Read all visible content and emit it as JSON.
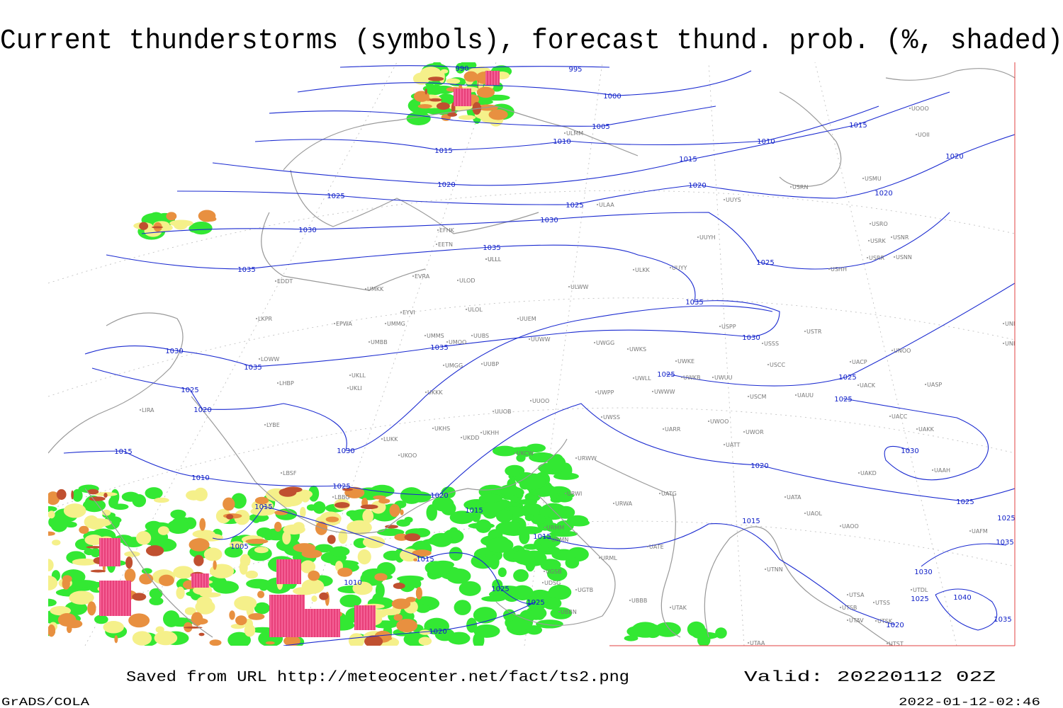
{
  "title": "Current thunderstorms (symbols), forecast thund. prob. (%, shaded)",
  "footer": {
    "saved": "Saved from URL http://meteocenter.net/fact/ts2.png",
    "valid": "Valid: 20220112 02Z",
    "software": "GrADS/COLA",
    "timestamp": "2022-01-12-02:46"
  },
  "isobar_labels": [
    "990",
    "995",
    "1000",
    "1005",
    "1010",
    "1015",
    "1020",
    "1025",
    "1030",
    "1035",
    "1035",
    "1030",
    "1025",
    "1015",
    "1020",
    "1010",
    "1015",
    "1020",
    "1020",
    "1025",
    "1035",
    "1030",
    "1035",
    "1035",
    "1030",
    "1025",
    "1020",
    "1015",
    "1010",
    "1030",
    "1025",
    "1020",
    "1015",
    "1015",
    "1005",
    "1015",
    "1010",
    "1025",
    "1025",
    "1020",
    "1015",
    "1025",
    "1025",
    "1025",
    "1030",
    "1020",
    "1025",
    "1025",
    "1015",
    "1035",
    "1030",
    "1025",
    "1020",
    "1040",
    "1035"
  ],
  "stations": [
    "EFHK",
    "EETN",
    "EVRA",
    "ULOD",
    "ULLI",
    "ULOL",
    "EYVI",
    "UMKK",
    "EDDT",
    "EPWA",
    "UMMG",
    "LKPR",
    "UMBB",
    "UMMS",
    "UMOO",
    "UUBS",
    "UUEM",
    "UUWW",
    "UWGG",
    "UWKS",
    "ULWW",
    "ULKK",
    "UUYY",
    "UUYH",
    "UUYS",
    "ULAA",
    "ULMM",
    "UMGG",
    "UUBP",
    "UKLL",
    "UKLI",
    "LHBP",
    "LOWW",
    "LIRA",
    "LYBE",
    "UKKK",
    "UUOB",
    "UUOO",
    "UWPP",
    "UWLL",
    "UWWW",
    "UWKB",
    "UWKE",
    "UWUU",
    "USPP",
    "USSS",
    "USTR",
    "USCC",
    "USCM",
    "UAUU",
    "UACP",
    "UNOO",
    "UNBB",
    "UNNT",
    "UACK",
    "UASP",
    "UACC",
    "UAKK",
    "UAKD",
    "UAAH",
    "UATT",
    "UWOO",
    "UWOR",
    "UARR",
    "UWSS",
    "URWW",
    "URWI",
    "UATG",
    "URWA",
    "UATA",
    "UAOL",
    "UAOO",
    "UATE",
    "URML",
    "URMM",
    "URMN",
    "UBBB",
    "UTAK",
    "UTNN",
    "UTSA",
    "UTSB",
    "UTAV",
    "UTSS",
    "UTSK",
    "UTST",
    "UTAA",
    "UTDL",
    "UAFM",
    "UKDD",
    "UKHH",
    "UKHS",
    "UKOO",
    "UKCW",
    "LUKK",
    "LBSF",
    "LBBG",
    "UGSB",
    "UGTB",
    "UDSG",
    "UBBN",
    "UOOO",
    "UOII",
    "USRK",
    "USNR",
    "USRO",
    "USRR",
    "USNN",
    "USMU",
    "USHH",
    "USRN",
    "ULLL"
  ]
}
